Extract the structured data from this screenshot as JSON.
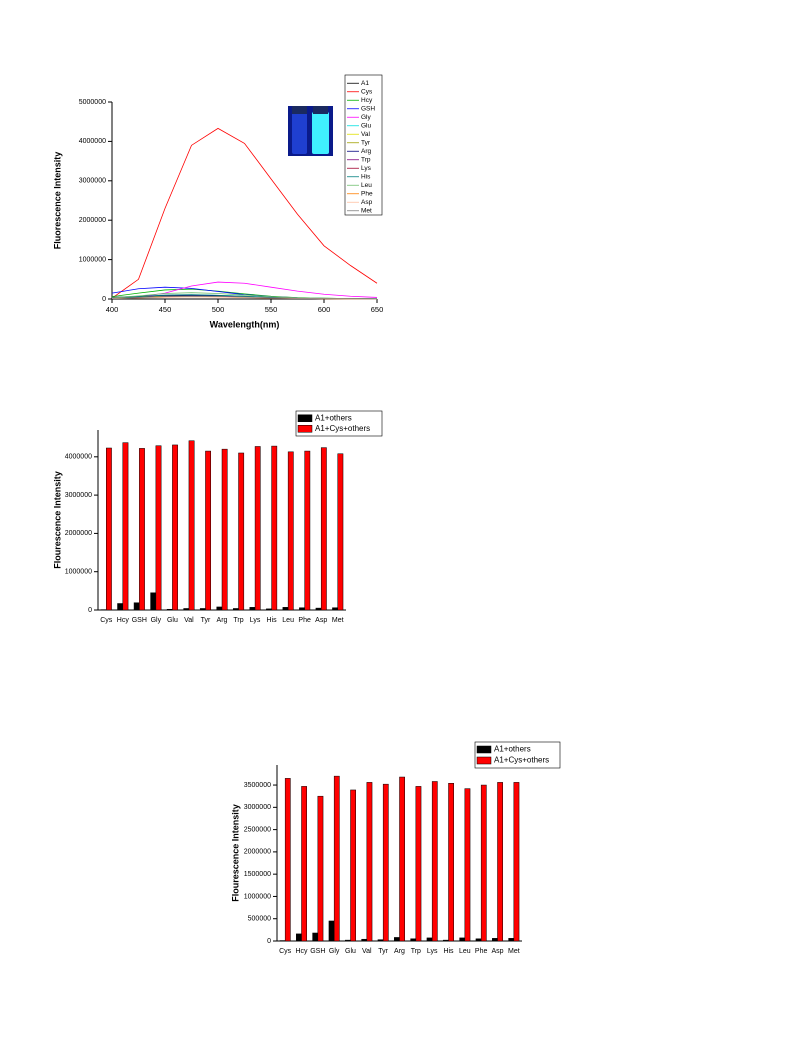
{
  "chart_data": [
    {
      "type": "line",
      "x_label": "Wavelength(nm)",
      "y_label": "Fluorescence Intensity",
      "x": [
        400,
        425,
        450,
        475,
        500,
        525,
        550,
        575,
        600,
        625,
        650
      ],
      "xlim": [
        400,
        650
      ],
      "xticks": [
        400,
        450,
        500,
        550,
        600,
        650
      ],
      "ylim": [
        0,
        5000000
      ],
      "yticks": [
        0,
        1000000,
        2000000,
        3000000,
        4000000,
        5000000
      ],
      "grid": false,
      "legend_position": "upper right",
      "series": [
        {
          "name": "A1",
          "color": "#000000",
          "values": [
            20000,
            40000,
            60000,
            70000,
            60000,
            45000,
            30000,
            20000,
            10000,
            5000,
            3000
          ]
        },
        {
          "name": "Cys",
          "color": "#ff0000",
          "values": [
            20000,
            500000,
            2300000,
            3900000,
            4330000,
            3950000,
            3050000,
            2150000,
            1350000,
            850000,
            400000
          ]
        },
        {
          "name": "Hcy",
          "color": "#00b000",
          "values": [
            60000,
            150000,
            230000,
            250000,
            200000,
            130000,
            70000,
            35000,
            20000,
            10000,
            5000
          ]
        },
        {
          "name": "GSH",
          "color": "#0000ff",
          "values": [
            150000,
            260000,
            300000,
            270000,
            190000,
            110000,
            60000,
            30000,
            15000,
            8000,
            5000
          ]
        },
        {
          "name": "Gly",
          "color": "#ff00ff",
          "values": [
            10000,
            50000,
            150000,
            330000,
            430000,
            400000,
            300000,
            200000,
            120000,
            70000,
            40000
          ]
        },
        {
          "name": "Glu",
          "color": "#00e0e0",
          "values": [
            30000,
            60000,
            90000,
            100000,
            90000,
            70000,
            45000,
            25000,
            15000,
            8000,
            5000
          ]
        },
        {
          "name": "Val",
          "color": "#e0e000",
          "values": [
            20000,
            50000,
            80000,
            90000,
            80000,
            60000,
            40000,
            25000,
            15000,
            8000,
            5000
          ]
        },
        {
          "name": "Tyr",
          "color": "#a0a000",
          "values": [
            20000,
            40000,
            70000,
            80000,
            75000,
            55000,
            35000,
            20000,
            12000,
            6000,
            4000
          ]
        },
        {
          "name": "Arg",
          "color": "#000080",
          "values": [
            40000,
            70000,
            90000,
            90000,
            75000,
            55000,
            35000,
            20000,
            12000,
            6000,
            4000
          ]
        },
        {
          "name": "Trp",
          "color": "#800080",
          "values": [
            20000,
            40000,
            60000,
            70000,
            65000,
            50000,
            30000,
            18000,
            10000,
            6000,
            4000
          ]
        },
        {
          "name": "Lys",
          "color": "#a00030",
          "values": [
            15000,
            35000,
            55000,
            65000,
            60000,
            45000,
            30000,
            18000,
            10000,
            6000,
            4000
          ]
        },
        {
          "name": "His",
          "color": "#008080",
          "values": [
            25000,
            60000,
            100000,
            110000,
            95000,
            70000,
            45000,
            25000,
            15000,
            8000,
            5000
          ]
        },
        {
          "name": "Leu",
          "color": "#70c070",
          "values": [
            30000,
            80000,
            140000,
            160000,
            140000,
            100000,
            60000,
            35000,
            20000,
            10000,
            6000
          ]
        },
        {
          "name": "Phe",
          "color": "#ff8000",
          "values": [
            15000,
            30000,
            50000,
            60000,
            55000,
            40000,
            25000,
            15000,
            8000,
            5000,
            3000
          ]
        },
        {
          "name": "Asp",
          "color": "#ffc0a0",
          "values": [
            10000,
            25000,
            40000,
            50000,
            45000,
            35000,
            22000,
            13000,
            8000,
            5000,
            3000
          ]
        },
        {
          "name": "Met",
          "color": "#808080",
          "values": [
            15000,
            35000,
            60000,
            70000,
            65000,
            50000,
            32000,
            18000,
            10000,
            6000,
            4000
          ]
        }
      ]
    },
    {
      "type": "bar",
      "y_label": "Flourescence Intensity",
      "categories": [
        "Cys",
        "Hcy",
        "GSH",
        "Gly",
        "Glu",
        "Val",
        "Tyr",
        "Arg",
        "Trp",
        "Lys",
        "His",
        "Leu",
        "Phe",
        "Asp",
        "Met"
      ],
      "ylim": [
        0,
        4700000
      ],
      "yticks": [
        0,
        1000000,
        2000000,
        3000000,
        4000000
      ],
      "grid": false,
      "legend_position": "upper right",
      "series": [
        {
          "name": "A1+others",
          "color": "#000000",
          "values": [
            10000,
            170000,
            190000,
            450000,
            20000,
            40000,
            40000,
            80000,
            40000,
            70000,
            30000,
            70000,
            60000,
            50000,
            60000
          ]
        },
        {
          "name": "A1+Cys+others",
          "color": "#ff0000",
          "values": [
            4230000,
            4370000,
            4220000,
            4290000,
            4310000,
            4420000,
            4150000,
            4200000,
            4100000,
            4270000,
            4280000,
            4130000,
            4150000,
            4240000,
            4080000
          ]
        }
      ]
    },
    {
      "type": "bar",
      "y_label": "Flourescence Intensity",
      "categories": [
        "Cys",
        "Hcy",
        "GSH",
        "Gly",
        "Glu",
        "Val",
        "Tyr",
        "Arg",
        "Trp",
        "Lys",
        "His",
        "Leu",
        "Phe",
        "Asp",
        "Met"
      ],
      "ylim": [
        0,
        3950000
      ],
      "yticks": [
        0,
        500000,
        1000000,
        1500000,
        2000000,
        2500000,
        3000000,
        3500000
      ],
      "grid": false,
      "legend_position": "upper right",
      "series": [
        {
          "name": "A1+others",
          "color": "#000000",
          "values": [
            10000,
            160000,
            180000,
            450000,
            20000,
            40000,
            30000,
            80000,
            50000,
            70000,
            20000,
            70000,
            50000,
            60000,
            60000
          ]
        },
        {
          "name": "A1+Cys+others",
          "color": "#ff0000",
          "values": [
            3650000,
            3470000,
            3250000,
            3700000,
            3390000,
            3560000,
            3520000,
            3680000,
            3470000,
            3580000,
            3540000,
            3420000,
            3500000,
            3560000,
            3560000
          ]
        }
      ]
    }
  ]
}
